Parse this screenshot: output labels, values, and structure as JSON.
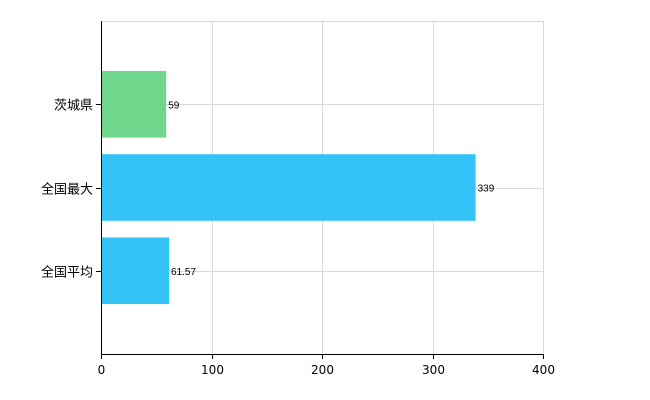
{
  "chart_data": {
    "type": "bar",
    "orientation": "horizontal",
    "categories": [
      "茨城県",
      "全国最大",
      "全国平均"
    ],
    "values": [
      59,
      339,
      61.57
    ],
    "value_labels": [
      "59",
      "339",
      "61.57"
    ],
    "bar_colors": [
      "#6fd68c",
      "#33c3f7",
      "#33c3f7"
    ],
    "xlim": [
      0,
      400
    ],
    "x_ticks": [
      0,
      100,
      200,
      300,
      400
    ],
    "x_tick_labels": [
      "0",
      "100",
      "200",
      "300",
      "400"
    ],
    "grid": true,
    "legend": "none"
  }
}
